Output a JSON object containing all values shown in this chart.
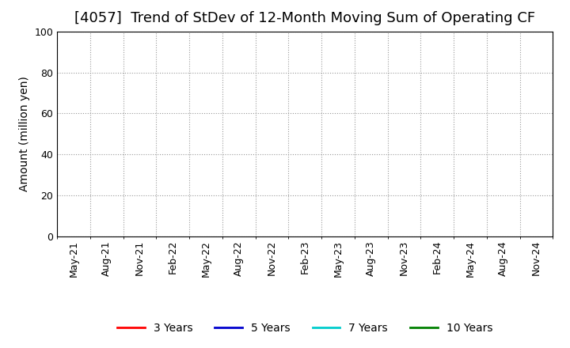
{
  "title": "[4057]  Trend of StDev of 12-Month Moving Sum of Operating CF",
  "ylabel": "Amount (million yen)",
  "ylim": [
    0,
    100
  ],
  "yticks": [
    0,
    20,
    40,
    60,
    80,
    100
  ],
  "x_labels": [
    "May-21",
    "Aug-21",
    "Nov-21",
    "Feb-22",
    "May-22",
    "Aug-22",
    "Nov-22",
    "Feb-23",
    "May-23",
    "Aug-23",
    "Nov-23",
    "Feb-24",
    "May-24",
    "Aug-24",
    "Nov-24"
  ],
  "background_color": "#ffffff",
  "plot_bg_color": "#ffffff",
  "grid_color_h": "#999999",
  "grid_color_v": "#999999",
  "border_color": "#000000",
  "legend_entries": [
    {
      "label": "3 Years",
      "color": "#ff0000"
    },
    {
      "label": "5 Years",
      "color": "#0000cd"
    },
    {
      "label": "7 Years",
      "color": "#00cccc"
    },
    {
      "label": "10 Years",
      "color": "#008000"
    }
  ],
  "title_fontsize": 13,
  "label_fontsize": 10,
  "tick_fontsize": 9,
  "legend_fontsize": 10,
  "figsize": [
    7.2,
    4.4
  ],
  "dpi": 100
}
